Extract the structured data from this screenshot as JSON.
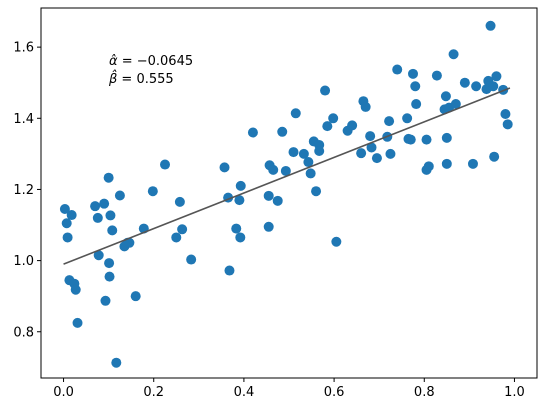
{
  "chart_data": {
    "type": "scatter",
    "title": "",
    "xlabel": "",
    "ylabel": "",
    "xlim": [
      -0.05,
      1.05
    ],
    "ylim": [
      0.67,
      1.71
    ],
    "xticks": [
      0.0,
      0.2,
      0.4,
      0.6,
      0.8,
      1.0
    ],
    "xtick_labels": [
      "0.0",
      "0.2",
      "0.4",
      "0.6",
      "0.8",
      "1.0"
    ],
    "yticks": [
      0.8,
      1.0,
      1.2,
      1.4,
      1.6
    ],
    "ytick_labels": [
      "0.8",
      "1.0",
      "1.2",
      "1.4",
      "1.6"
    ],
    "grid": false,
    "point_color": "#1f77b4",
    "line_color": "#555555",
    "annotations": {
      "alpha_symbol": "α̂",
      "alpha_text": " = −0.0645",
      "beta_symbol": "β̂",
      "beta_text": " = 0.555"
    },
    "fit_line": {
      "intercept": 0.99,
      "slope": 0.5,
      "x_range": [
        0.0,
        0.99
      ]
    },
    "points": [
      [
        0.003,
        1.145
      ],
      [
        0.007,
        1.105
      ],
      [
        0.009,
        1.065
      ],
      [
        0.013,
        0.945
      ],
      [
        0.018,
        1.128
      ],
      [
        0.024,
        0.935
      ],
      [
        0.027,
        0.918
      ],
      [
        0.031,
        0.825
      ],
      [
        0.07,
        1.153
      ],
      [
        0.076,
        1.12
      ],
      [
        0.078,
        1.015
      ],
      [
        0.09,
        1.16
      ],
      [
        0.093,
        0.887
      ],
      [
        0.1,
        1.233
      ],
      [
        0.101,
        0.993
      ],
      [
        0.102,
        0.955
      ],
      [
        0.104,
        1.127
      ],
      [
        0.108,
        1.085
      ],
      [
        0.117,
        0.713
      ],
      [
        0.125,
        1.183
      ],
      [
        0.135,
        1.04
      ],
      [
        0.142,
        1.05
      ],
      [
        0.146,
        1.05
      ],
      [
        0.16,
        0.9
      ],
      [
        0.178,
        1.09
      ],
      [
        0.198,
        1.195
      ],
      [
        0.225,
        1.27
      ],
      [
        0.25,
        1.065
      ],
      [
        0.258,
        1.165
      ],
      [
        0.263,
        1.088
      ],
      [
        0.283,
        1.003
      ],
      [
        0.357,
        1.262
      ],
      [
        0.365,
        1.177
      ],
      [
        0.368,
        0.972
      ],
      [
        0.383,
        1.09
      ],
      [
        0.39,
        1.17
      ],
      [
        0.392,
        1.065
      ],
      [
        0.393,
        1.21
      ],
      [
        0.42,
        1.36
      ],
      [
        0.455,
        1.095
      ],
      [
        0.455,
        1.182
      ],
      [
        0.457,
        1.268
      ],
      [
        0.465,
        1.255
      ],
      [
        0.475,
        1.168
      ],
      [
        0.485,
        1.362
      ],
      [
        0.493,
        1.252
      ],
      [
        0.51,
        1.305
      ],
      [
        0.515,
        1.414
      ],
      [
        0.533,
        1.3
      ],
      [
        0.543,
        1.277
      ],
      [
        0.548,
        1.245
      ],
      [
        0.555,
        1.335
      ],
      [
        0.56,
        1.195
      ],
      [
        0.567,
        1.325
      ],
      [
        0.567,
        1.308
      ],
      [
        0.58,
        1.478
      ],
      [
        0.585,
        1.378
      ],
      [
        0.598,
        1.4
      ],
      [
        0.605,
        1.053
      ],
      [
        0.63,
        1.365
      ],
      [
        0.64,
        1.38
      ],
      [
        0.66,
        1.302
      ],
      [
        0.665,
        1.448
      ],
      [
        0.67,
        1.432
      ],
      [
        0.68,
        1.35
      ],
      [
        0.683,
        1.318
      ],
      [
        0.695,
        1.288
      ],
      [
        0.718,
        1.348
      ],
      [
        0.722,
        1.392
      ],
      [
        0.725,
        1.3
      ],
      [
        0.74,
        1.537
      ],
      [
        0.762,
        1.4
      ],
      [
        0.765,
        1.342
      ],
      [
        0.77,
        1.34
      ],
      [
        0.775,
        1.525
      ],
      [
        0.78,
        1.49
      ],
      [
        0.782,
        1.44
      ],
      [
        0.805,
        1.34
      ],
      [
        0.805,
        1.255
      ],
      [
        0.81,
        1.265
      ],
      [
        0.828,
        1.52
      ],
      [
        0.845,
        1.425
      ],
      [
        0.848,
        1.462
      ],
      [
        0.85,
        1.345
      ],
      [
        0.85,
        1.272
      ],
      [
        0.855,
        1.43
      ],
      [
        0.865,
        1.58
      ],
      [
        0.87,
        1.44
      ],
      [
        0.89,
        1.5
      ],
      [
        0.908,
        1.272
      ],
      [
        0.915,
        1.49
      ],
      [
        0.938,
        1.482
      ],
      [
        0.942,
        1.505
      ],
      [
        0.947,
        1.66
      ],
      [
        0.953,
        1.49
      ],
      [
        0.955,
        1.292
      ],
      [
        0.96,
        1.518
      ],
      [
        0.975,
        1.48
      ],
      [
        0.98,
        1.412
      ],
      [
        0.985,
        1.383
      ]
    ]
  }
}
